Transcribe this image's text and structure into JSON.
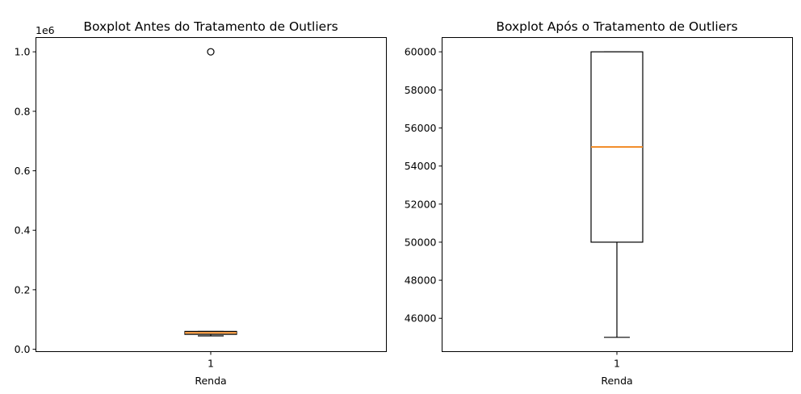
{
  "chart_data": [
    {
      "type": "boxplot",
      "title": "Boxplot Antes do Tratamento de Outliers",
      "xlabel": "Renda",
      "ylabel": "",
      "categories": [
        "1"
      ],
      "y_offset_label": "1e6",
      "ylim": [
        -8000,
        1048000
      ],
      "yticks": [
        0,
        200000,
        400000,
        600000,
        800000,
        1000000
      ],
      "ytick_labels": [
        "0.0",
        "0.2",
        "0.4",
        "0.6",
        "0.8",
        "1.0"
      ],
      "box": {
        "whisker_low": 45000,
        "q1": 50000,
        "median": 55000,
        "q3": 60000,
        "whisker_high": 60000
      },
      "fliers": [
        1000000
      ],
      "median_color": "#f28e2b",
      "grid": false
    },
    {
      "type": "boxplot",
      "title": "Boxplot Após o Tratamento de Outliers",
      "xlabel": "Renda",
      "ylabel": "",
      "categories": [
        "1"
      ],
      "ylim": [
        44250,
        60750
      ],
      "yticks": [
        46000,
        48000,
        50000,
        52000,
        54000,
        56000,
        58000,
        60000
      ],
      "ytick_labels": [
        "46000",
        "48000",
        "50000",
        "52000",
        "54000",
        "56000",
        "58000",
        "60000"
      ],
      "box": {
        "whisker_low": 45000,
        "q1": 50000,
        "median": 55000,
        "q3": 60000,
        "whisker_high": 60000
      },
      "fliers": [],
      "median_color": "#f28e2b",
      "grid": false
    }
  ]
}
